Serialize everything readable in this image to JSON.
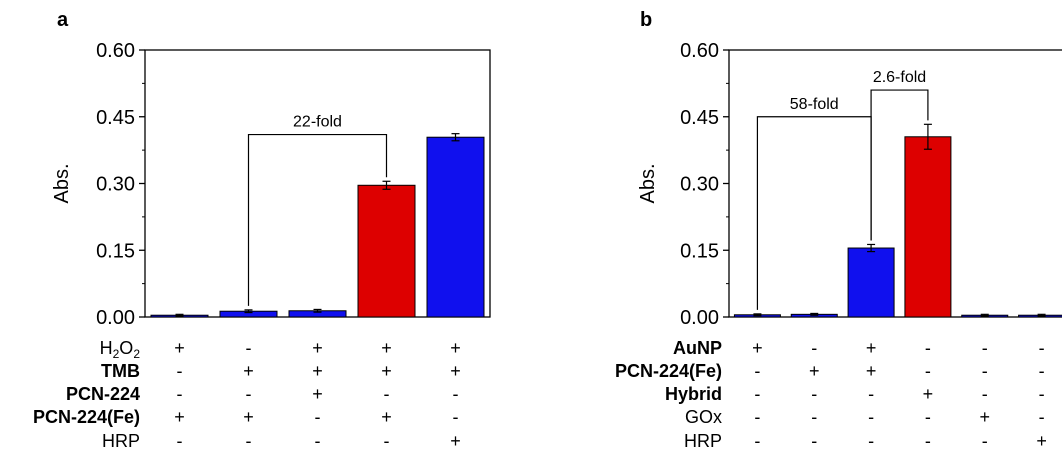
{
  "chart_data": [
    {
      "panel_label": "a",
      "type": "bar",
      "ylabel": "Abs.",
      "ylim": [
        0,
        0.6
      ],
      "yticks": [
        "0.00",
        "0.15",
        "0.30",
        "0.45",
        "0.60"
      ],
      "categories": [
        "1",
        "2",
        "3",
        "4",
        "5"
      ],
      "values": [
        0.004,
        0.013,
        0.014,
        0.296,
        0.404
      ],
      "errors": [
        0.002,
        0.003,
        0.003,
        0.009,
        0.008
      ],
      "bar_colors": [
        "#1010ee",
        "#1010ee",
        "#1010ee",
        "#dd0000",
        "#1010ee"
      ],
      "condition_rows": [
        {
          "label": "H2O2",
          "bold": false,
          "values": [
            "+",
            "-",
            "+",
            "+",
            "+"
          ]
        },
        {
          "label": "TMB",
          "bold": true,
          "values": [
            "-",
            "+",
            "+",
            "+",
            "+"
          ]
        },
        {
          "label": "PCN-224",
          "bold": true,
          "values": [
            "-",
            "-",
            "+",
            "-",
            "-"
          ]
        },
        {
          "label": "PCN-224(Fe)",
          "bold": true,
          "values": [
            "+",
            "+",
            "-",
            "+",
            "-"
          ]
        },
        {
          "label": "HRP",
          "bold": false,
          "values": [
            "-",
            "-",
            "-",
            "-",
            "+"
          ]
        }
      ],
      "annotations": [
        {
          "text": "22-fold",
          "from_bar": 2,
          "to_bar": 4,
          "at_value": 0.41
        }
      ]
    },
    {
      "panel_label": "b",
      "type": "bar",
      "ylabel": "Abs.",
      "ylim": [
        0,
        0.6
      ],
      "yticks": [
        "0.00",
        "0.15",
        "0.30",
        "0.45",
        "0.60"
      ],
      "categories": [
        "1",
        "2",
        "3",
        "4",
        "5",
        "6"
      ],
      "values": [
        0.005,
        0.006,
        0.155,
        0.405,
        0.004,
        0.004
      ],
      "errors": [
        0.002,
        0.002,
        0.008,
        0.028,
        0.002,
        0.002
      ],
      "bar_colors": [
        "#1010ee",
        "#1010ee",
        "#1010ee",
        "#dd0000",
        "#1010ee",
        "#1010ee"
      ],
      "condition_rows": [
        {
          "label": "AuNP",
          "bold": true,
          "values": [
            "+",
            "-",
            "+",
            "-",
            "-",
            "-"
          ]
        },
        {
          "label": "PCN-224(Fe)",
          "bold": true,
          "values": [
            "-",
            "+",
            "+",
            "-",
            "-",
            "-"
          ]
        },
        {
          "label": "Hybrid",
          "bold": true,
          "values": [
            "-",
            "-",
            "-",
            "+",
            "-",
            "-"
          ]
        },
        {
          "label": "GOx",
          "bold": false,
          "values": [
            "-",
            "-",
            "-",
            "-",
            "+",
            "-"
          ]
        },
        {
          "label": "HRP",
          "bold": false,
          "values": [
            "-",
            "-",
            "-",
            "-",
            "-",
            "+"
          ]
        }
      ],
      "annotations": [
        {
          "text": "58-fold",
          "from_bar": 1,
          "to_bar": 3,
          "at_value": 0.45
        },
        {
          "text": "2.6-fold",
          "from_bar": 3,
          "to_bar": 4,
          "at_value": 0.51
        }
      ]
    }
  ]
}
